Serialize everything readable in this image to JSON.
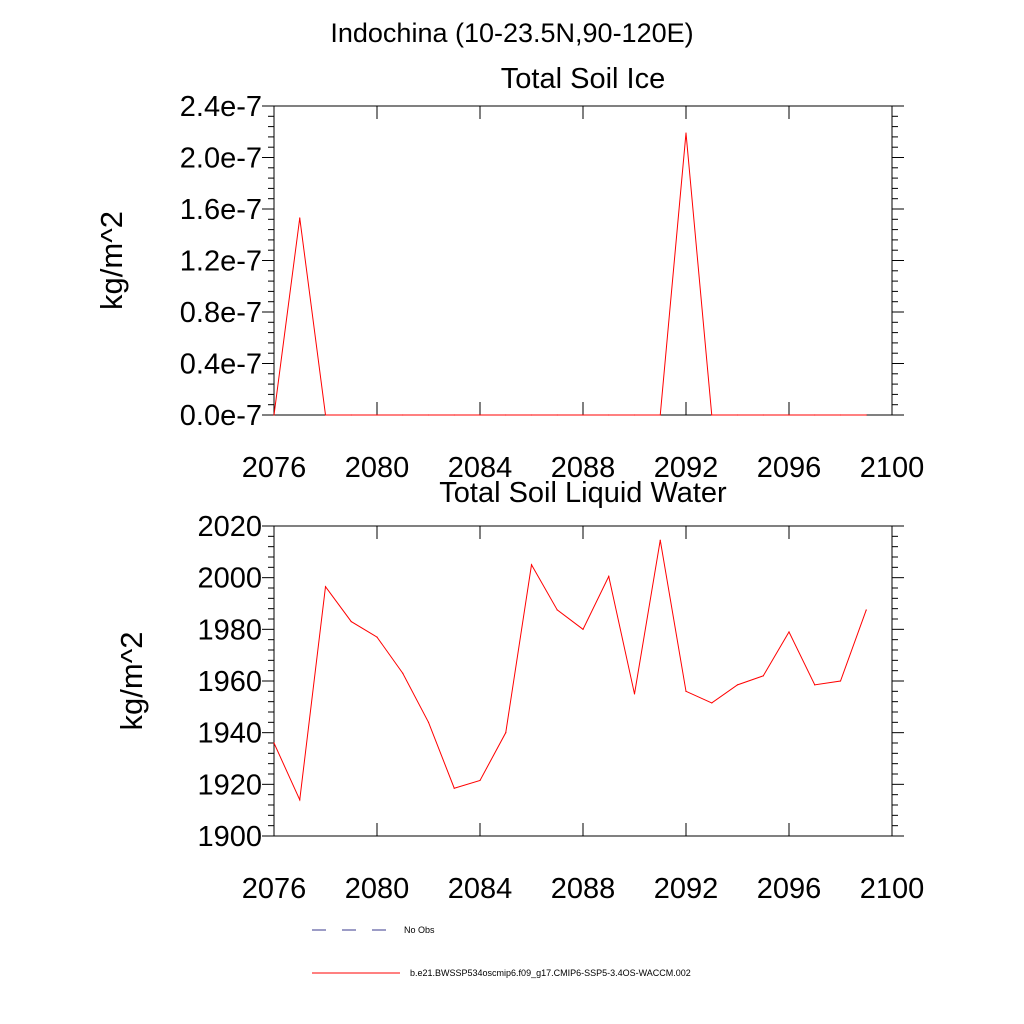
{
  "figure_title": "Indochina (10-23.5N,90-120E)",
  "legend": {
    "entries": [
      {
        "label": "No Obs",
        "color": "#3a3a8c",
        "style": "dashed"
      },
      {
        "label": "b.e21.BWSSP534oscmip6.f09_g17.CMIP6-SSP5-3.4OS-WACCM.002",
        "color": "#ff0000",
        "style": "solid"
      }
    ]
  },
  "colors": {
    "series": "#ff0000",
    "axis": "#000000"
  },
  "chart_data": [
    {
      "type": "line",
      "title": "Total Soil Ice",
      "xlabel": "",
      "ylabel": "kg/m^2",
      "xlim": [
        2076,
        2100
      ],
      "ylim": [
        0,
        2.4e-07
      ],
      "xticks": [
        2076,
        2080,
        2084,
        2088,
        2092,
        2096,
        2100
      ],
      "xtick_labels": [
        "2076",
        "2080",
        "2084",
        "2088",
        "2092",
        "2096",
        "2100"
      ],
      "yticks": [
        0,
        4e-08,
        8e-08,
        1.2e-07,
        1.6e-07,
        2e-07,
        2.4e-07
      ],
      "ytick_labels": [
        "0.0e-7",
        "0.4e-7",
        "0.8e-7",
        "1.2e-7",
        "1.6e-7",
        "2.0e-7",
        "2.4e-7"
      ],
      "series": [
        {
          "name": "b.e21.BWSSP534oscmip6.f09_g17.CMIP6-SSP5-3.4OS-WACCM.002",
          "x": [
            2076,
            2077,
            2078,
            2079,
            2080,
            2081,
            2082,
            2083,
            2084,
            2085,
            2086,
            2087,
            2088,
            2089,
            2090,
            2091,
            2092,
            2093,
            2094,
            2095,
            2096,
            2097,
            2098,
            2099
          ],
          "values": [
            0,
            1.53e-07,
            0,
            0,
            0,
            0,
            0,
            0,
            0,
            0,
            0,
            0,
            0,
            0,
            0,
            0,
            2.19e-07,
            0,
            0,
            0,
            0,
            0,
            0,
            0
          ]
        }
      ]
    },
    {
      "type": "line",
      "title": "Total Soil Liquid Water",
      "xlabel": "",
      "ylabel": "kg/m^2",
      "xlim": [
        2076,
        2100
      ],
      "ylim": [
        1900,
        2020
      ],
      "xticks": [
        2076,
        2080,
        2084,
        2088,
        2092,
        2096,
        2100
      ],
      "xtick_labels": [
        "2076",
        "2080",
        "2084",
        "2088",
        "2092",
        "2096",
        "2100"
      ],
      "yticks": [
        1900,
        1920,
        1940,
        1960,
        1980,
        2000,
        2020
      ],
      "ytick_labels": [
        "1900",
        "1920",
        "1940",
        "1960",
        "1980",
        "2000",
        "2020"
      ],
      "series": [
        {
          "name": "b.e21.BWSSP534oscmip6.f09_g17.CMIP6-SSP5-3.4OS-WACCM.002",
          "x": [
            2076,
            2077,
            2078,
            2079,
            2080,
            2081,
            2082,
            2083,
            2084,
            2085,
            2086,
            2087,
            2088,
            2089,
            2090,
            2091,
            2092,
            2093,
            2094,
            2095,
            2096,
            2097,
            2098,
            2099
          ],
          "values": [
            1936,
            1914,
            1996.5,
            1983,
            1977,
            1963,
            1944,
            1918.5,
            1921.5,
            1940,
            2005,
            1987.5,
            1980,
            2000.5,
            1955,
            2014.5,
            1956,
            1951.5,
            1958.5,
            1962,
            1979,
            1958.5,
            1960,
            1987.5
          ]
        }
      ]
    }
  ]
}
